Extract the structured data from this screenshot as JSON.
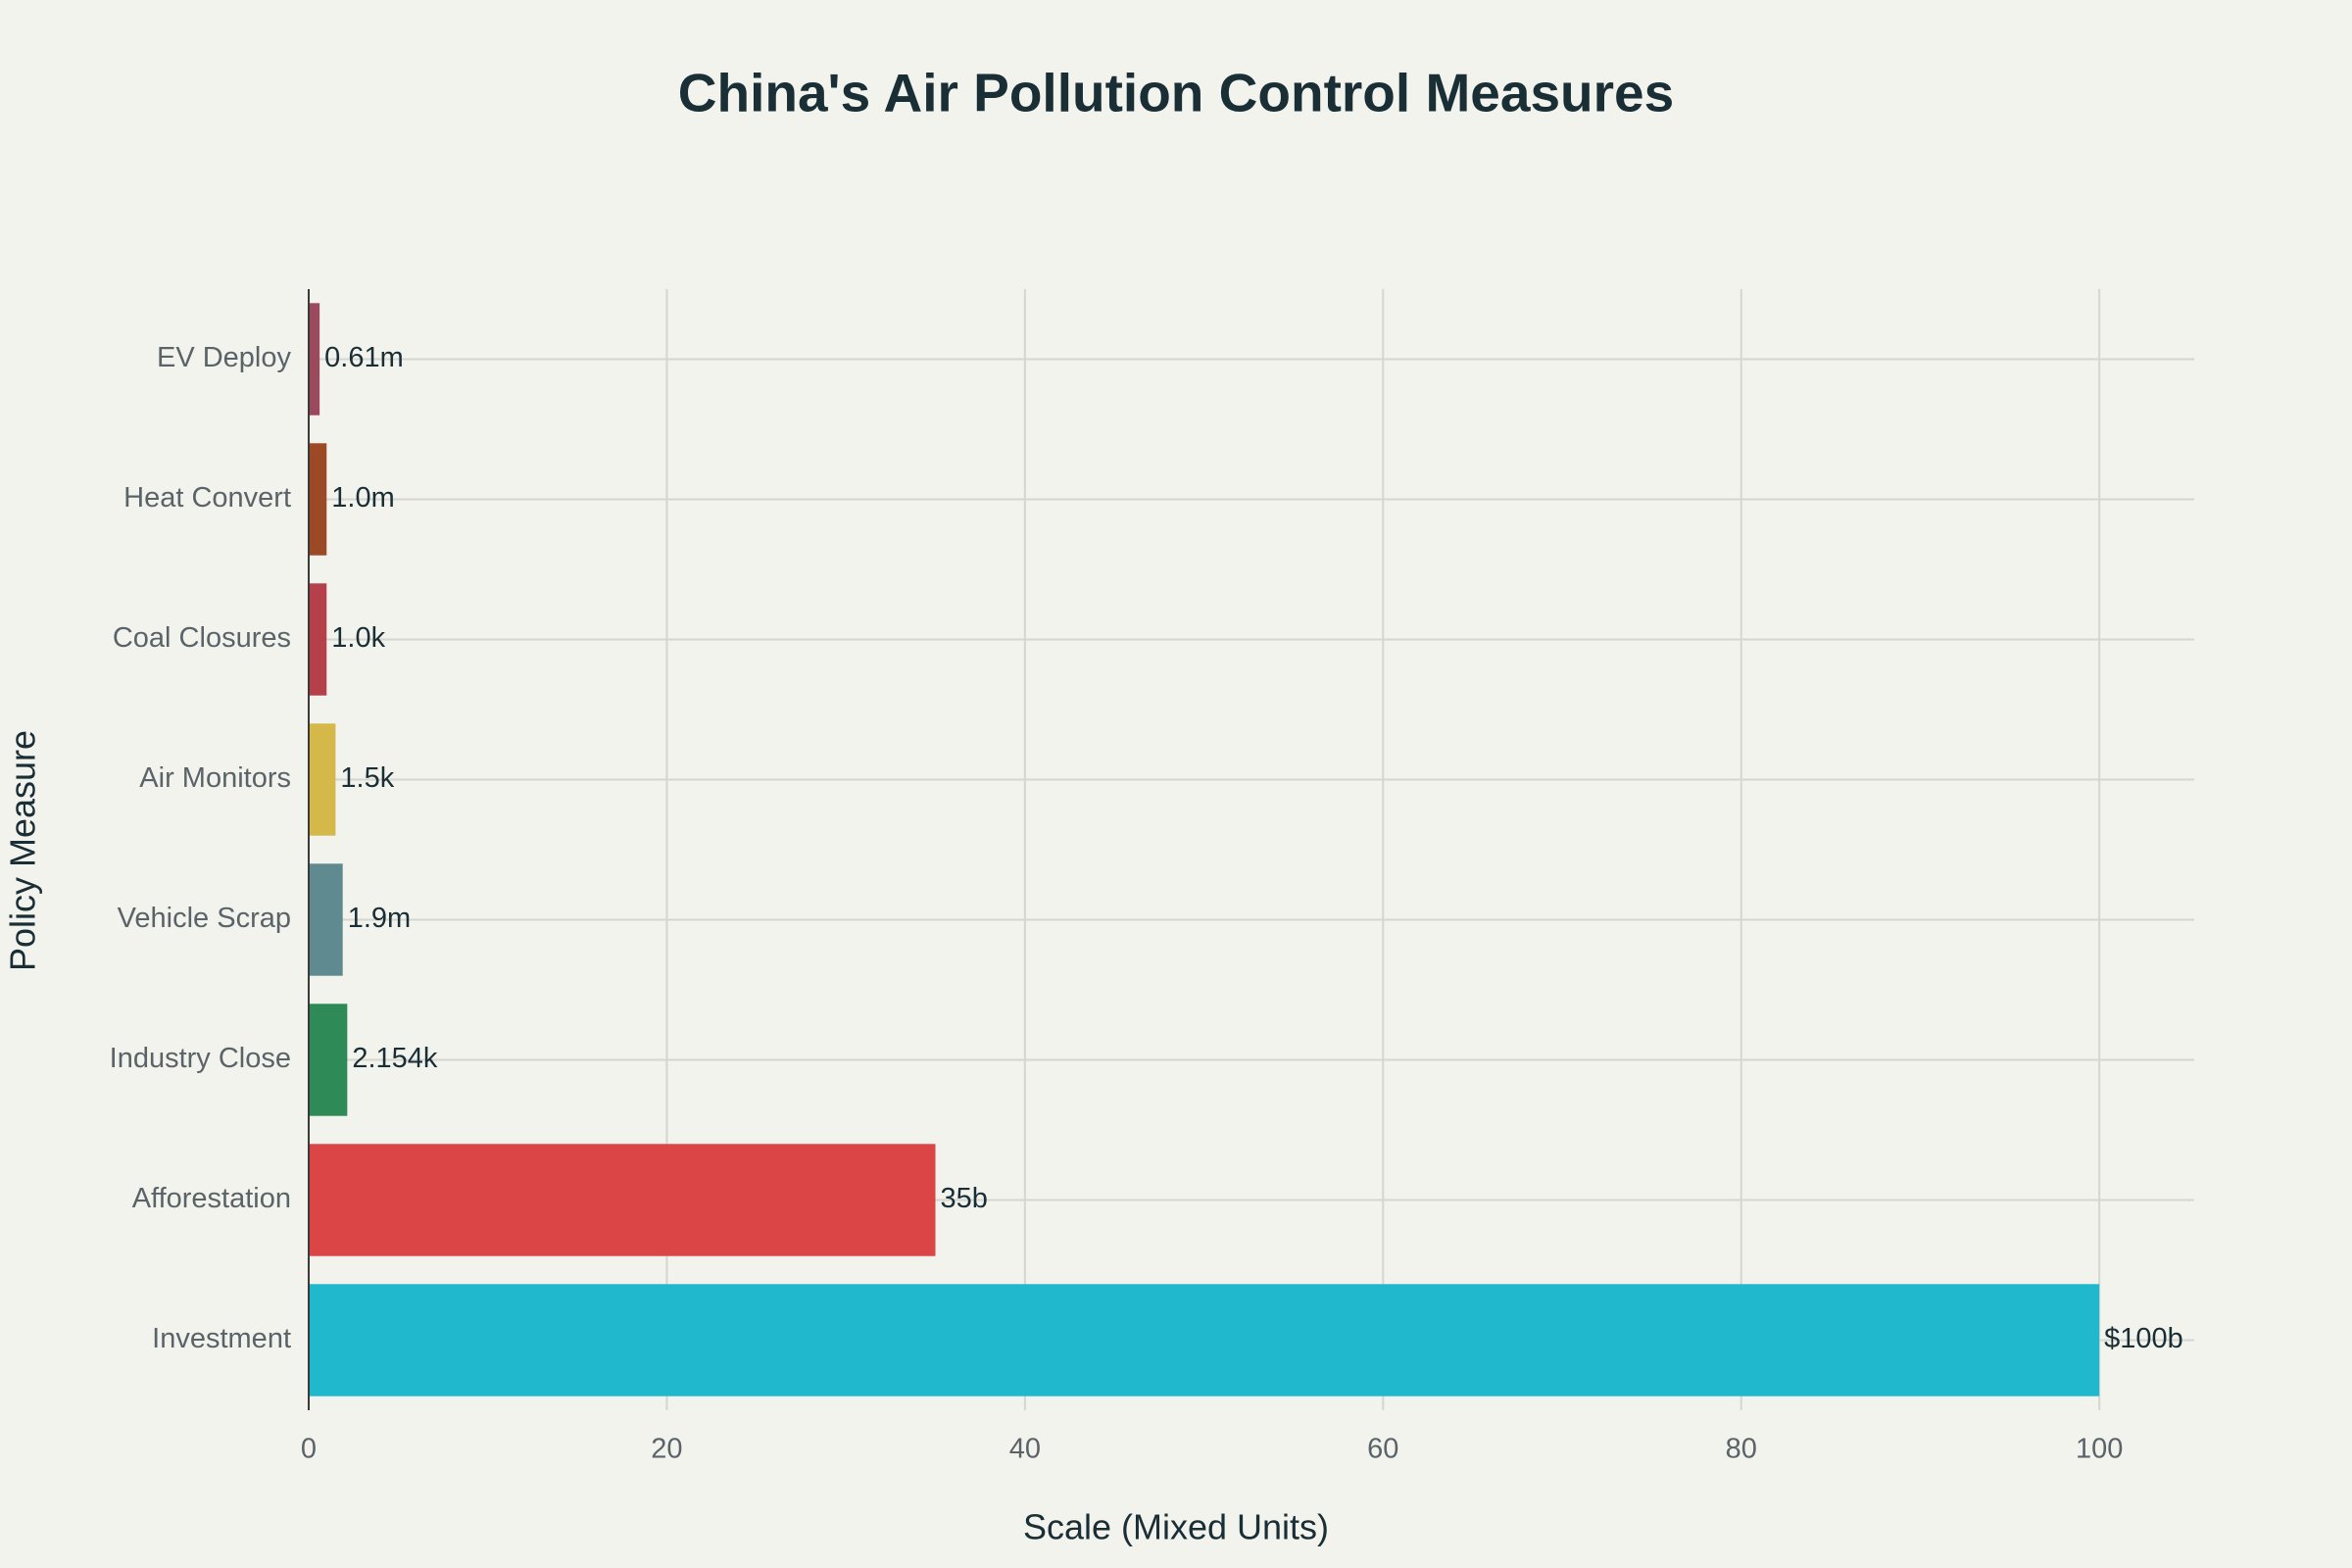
{
  "chart_data": {
    "type": "bar",
    "orientation": "horizontal",
    "title": "China's Air Pollution Control Measures",
    "x_label": "Scale (Mixed Units)",
    "y_label": "Policy Measure",
    "categories": [
      "EV Deploy",
      "Heat Convert",
      "Coal Closures",
      "Air Monitors",
      "Vehicle Scrap",
      "Industry Close",
      "Afforestation",
      "Investment"
    ],
    "values": [
      0.61,
      1.0,
      1.0,
      1.5,
      1.9,
      2.154,
      35,
      100
    ],
    "value_labels": [
      "0.61m",
      "1.0m",
      "1.0k",
      "1.5k",
      "1.9m",
      "2.154k",
      "35b",
      "$100b"
    ],
    "colors": [
      "#9b4a5e",
      "#9c4a25",
      "#b5404a",
      "#d4b84a",
      "#5f8a8f",
      "#2e8b57",
      "#db4545",
      "#1fb8cd"
    ],
    "xlim": [
      0,
      105.3
    ],
    "xticks": [
      0,
      20,
      40,
      60,
      80,
      100
    ],
    "grid": true
  }
}
